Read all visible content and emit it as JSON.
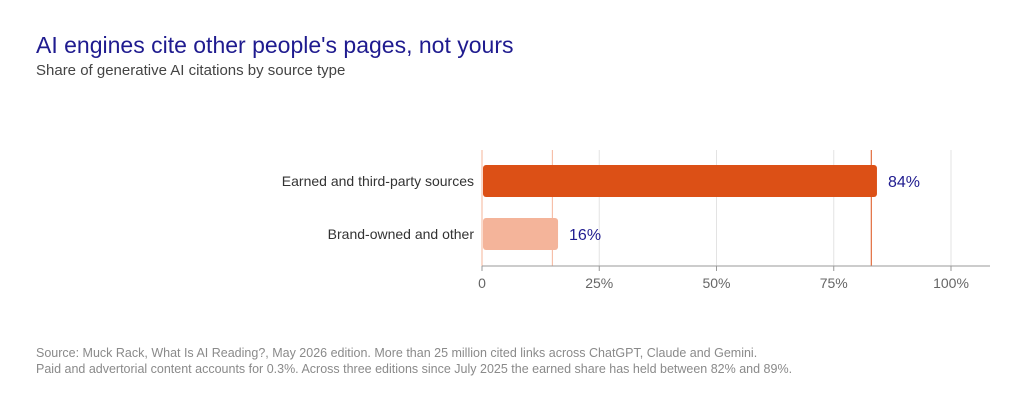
{
  "title": "AI engines cite other people's pages, not yours",
  "subtitle": "Share of generative AI citations by source type",
  "chart_data": {
    "type": "bar",
    "orientation": "horizontal",
    "categories": [
      "Earned and third-party sources",
      "Brand-owned and other"
    ],
    "values": [
      84,
      16
    ],
    "value_labels": [
      "84%",
      "16%"
    ],
    "colors": [
      "#dc5016",
      "#f4b49a"
    ],
    "xlim": [
      0,
      100
    ],
    "x_ticks": [
      0,
      25,
      50,
      75,
      100
    ],
    "x_tick_labels": [
      "0",
      "25%",
      "50%",
      "75%",
      "100%"
    ],
    "reference_lines": [
      {
        "value": 15,
        "color": "#f4b49a"
      },
      {
        "value": 83,
        "color": "#dc5016"
      }
    ],
    "grid": true,
    "label_color": "#1f1b8f"
  },
  "source": {
    "line1": "Source: Muck Rack, What Is AI Reading?, May 2026 edition. More than 25 million cited links across ChatGPT, Claude and Gemini.",
    "line2": "Paid and advertorial content accounts for 0.3%. Across three editions since July 2025 the earned share has held between 82% and 89%."
  }
}
